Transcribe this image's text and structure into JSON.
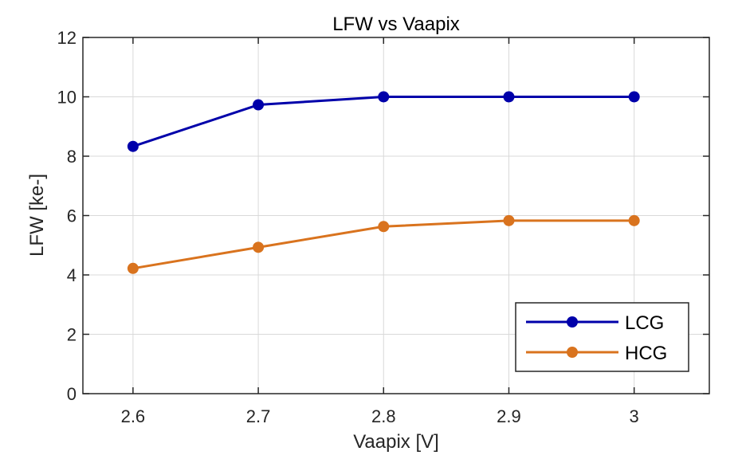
{
  "chart_data": {
    "type": "line",
    "title": "LFW vs Vaapix",
    "xlabel": "Vaapix [V]",
    "ylabel": "LFW [ke-]",
    "x": [
      2.6,
      2.7,
      2.8,
      2.9,
      3.0
    ],
    "x_tick_labels": [
      "2.6",
      "2.7",
      "2.8",
      "2.9",
      "3"
    ],
    "xlim": [
      2.56,
      3.06
    ],
    "ylim": [
      0,
      12
    ],
    "y_ticks": [
      0,
      2,
      4,
      6,
      8,
      10,
      12
    ],
    "y_tick_labels": [
      "0",
      "2",
      "4",
      "6",
      "8",
      "10",
      "12"
    ],
    "grid": true,
    "legend_position": "bottom-right",
    "series": [
      {
        "name": "LCG",
        "color": "#0000AA",
        "values": [
          8.33,
          9.73,
          10.0,
          10.0,
          10.0
        ]
      },
      {
        "name": "HCG",
        "color": "#D9731E",
        "values": [
          4.22,
          4.93,
          5.63,
          5.83,
          5.83
        ]
      }
    ]
  }
}
